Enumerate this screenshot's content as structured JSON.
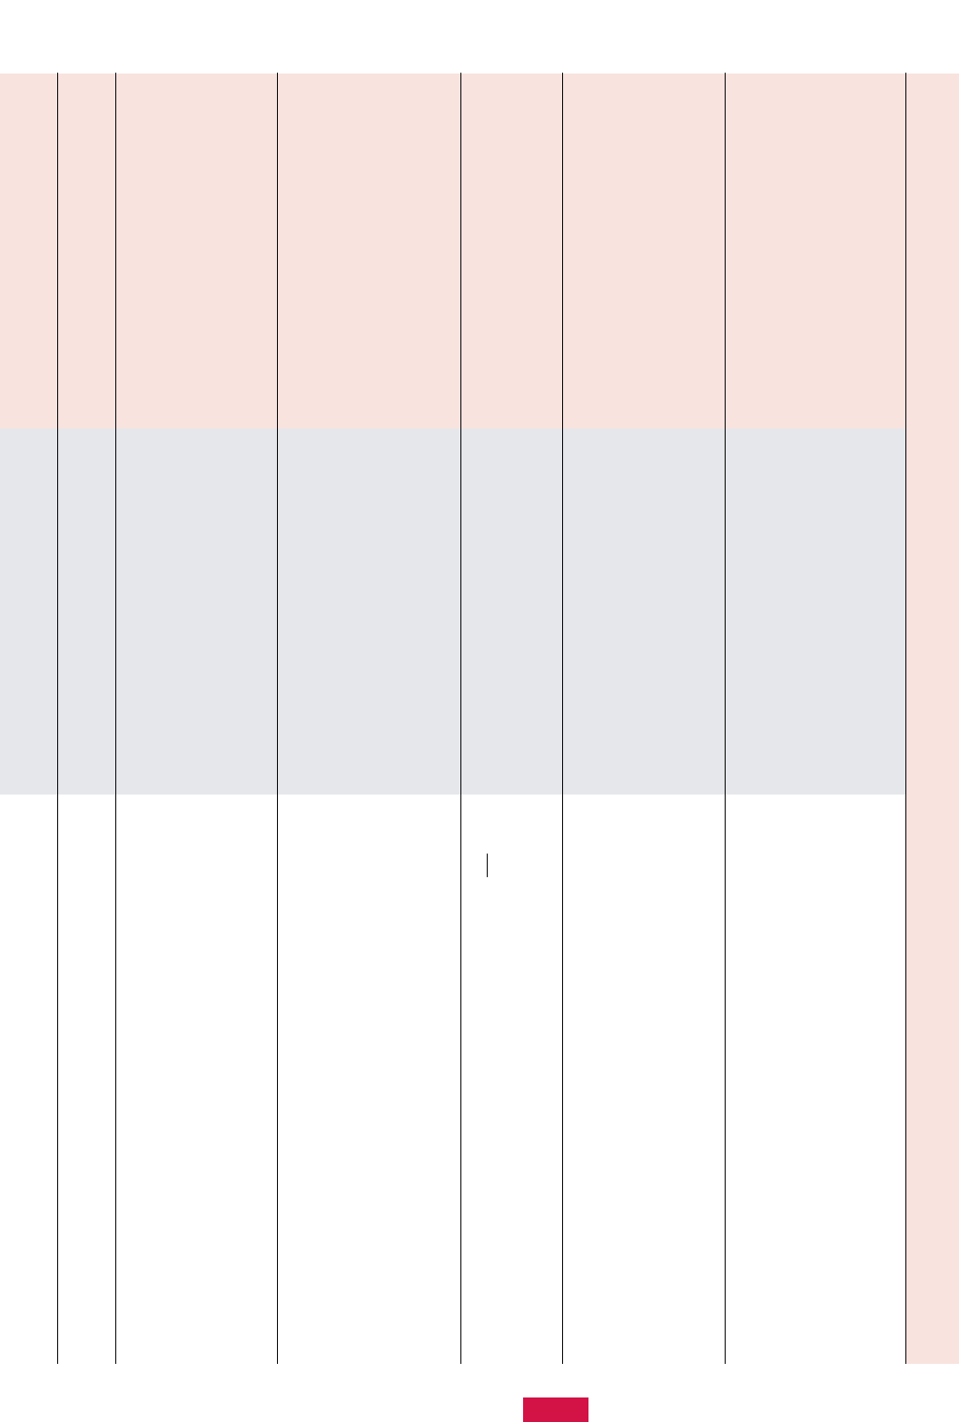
{
  "colors": {
    "header_band": "#f8e3df",
    "middle_band": "#e5e7ea",
    "right_strip": "#f8e3df",
    "accent_button": "#d31245",
    "column_lines": "#000000"
  },
  "table": {
    "column_count": 8,
    "cells": []
  },
  "text_input": {
    "value": ""
  }
}
